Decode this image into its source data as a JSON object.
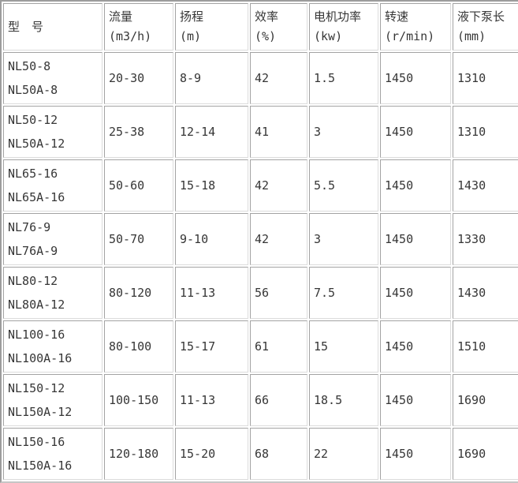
{
  "colors": {
    "background": "#ffffff",
    "cell_background": "#ffffff",
    "border_outer_dark": "#9c9c9c",
    "border_outer_light": "#c6c6c6",
    "border_cell_dark": "#a3a3a3",
    "border_cell_light": "#dcdcdc",
    "text": "#363636"
  },
  "chart_data": {
    "type": "table",
    "columns": [
      {
        "title": "型　号",
        "unit": ""
      },
      {
        "title": "流量",
        "unit": "(m3/h)"
      },
      {
        "title": "扬程",
        "unit": "(m)"
      },
      {
        "title": "效率",
        "unit": "(%)"
      },
      {
        "title": "电机功率",
        "unit": "(kw)"
      },
      {
        "title": "转速",
        "unit": "(r/min)"
      },
      {
        "title": "液下泵长",
        "unit": "(mm)"
      }
    ],
    "rows": [
      {
        "models": [
          "NL50-8",
          "NL50A-8"
        ],
        "values": [
          "20-30",
          "8-9",
          "42",
          "1.5",
          "1450",
          "1310"
        ]
      },
      {
        "models": [
          "NL50-12",
          "NL50A-12"
        ],
        "values": [
          "25-38",
          "12-14",
          "41",
          "3",
          "1450",
          "1310"
        ]
      },
      {
        "models": [
          "NL65-16",
          "NL65A-16"
        ],
        "values": [
          "50-60",
          "15-18",
          "42",
          "5.5",
          "1450",
          "1430"
        ]
      },
      {
        "models": [
          "NL76-9",
          "NL76A-9"
        ],
        "values": [
          "50-70",
          "9-10",
          "42",
          "3",
          "1450",
          "1330"
        ]
      },
      {
        "models": [
          "NL80-12",
          "NL80A-12"
        ],
        "values": [
          "80-120",
          "11-13",
          "56",
          "7.5",
          "1450",
          "1430"
        ]
      },
      {
        "models": [
          "NL100-16",
          "NL100A-16"
        ],
        "values": [
          "80-100",
          "15-17",
          "61",
          "15",
          "1450",
          "1510"
        ]
      },
      {
        "models": [
          "NL150-12",
          "NL150A-12"
        ],
        "values": [
          "100-150",
          "11-13",
          "66",
          "18.5",
          "1450",
          "1690"
        ]
      },
      {
        "models": [
          "NL150-16",
          "NL150A-16"
        ],
        "values": [
          "120-180",
          "15-20",
          "68",
          "22",
          "1450",
          "1690"
        ]
      }
    ]
  }
}
